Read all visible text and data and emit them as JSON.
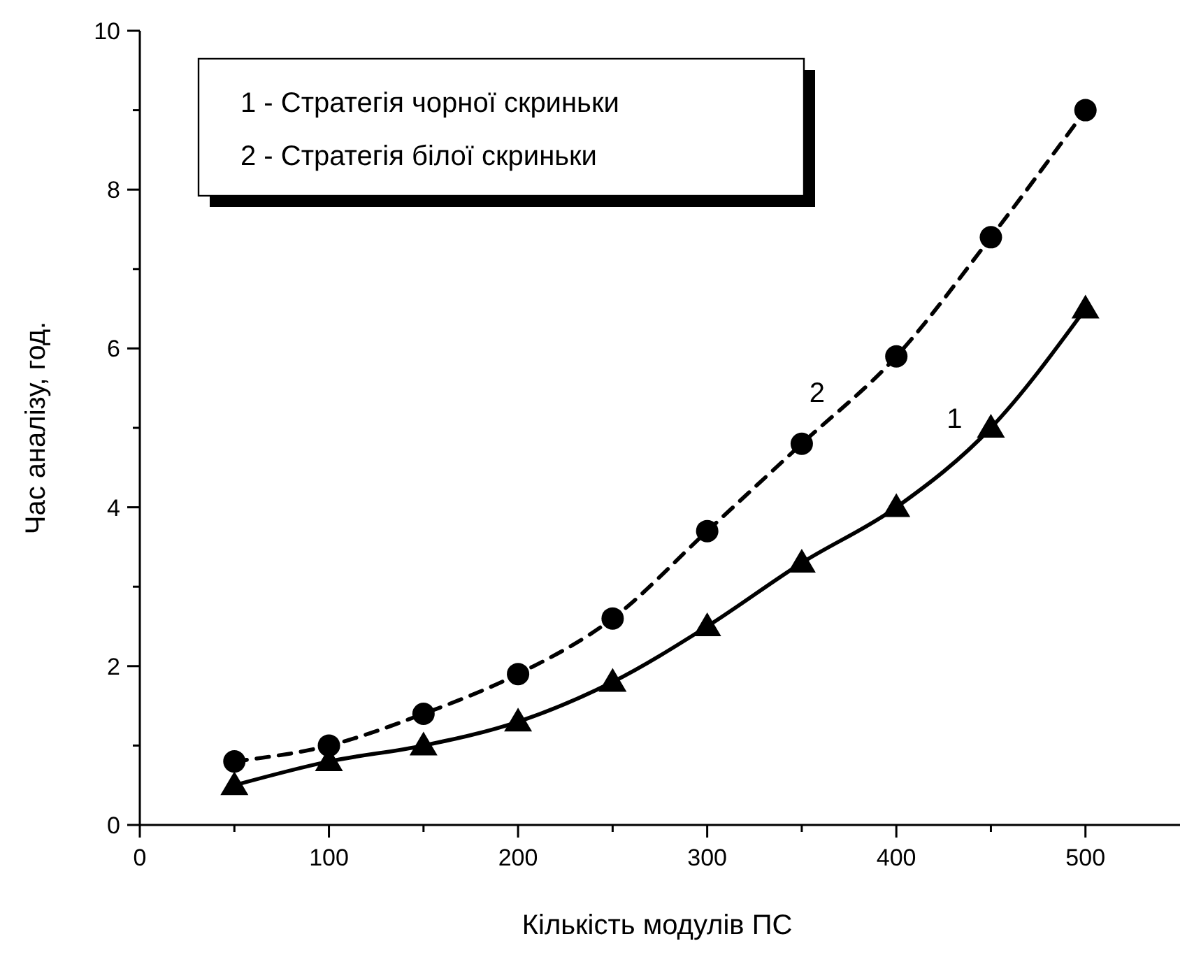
{
  "chart_data": {
    "type": "line",
    "xlabel": "Кількість модулів ПС",
    "ylabel": "Час аналізу, год.",
    "x": [
      50,
      100,
      150,
      200,
      250,
      300,
      350,
      400,
      450,
      500
    ],
    "series": [
      {
        "name": "1",
        "color": "#000000",
        "marker": "triangle",
        "line_style": "solid",
        "values": [
          0.5,
          0.8,
          1.0,
          1.3,
          1.8,
          2.5,
          3.3,
          4.0,
          5.0,
          6.5
        ]
      },
      {
        "name": "2",
        "color": "#000000",
        "marker": "circle",
        "line_style": "dashed",
        "values": [
          0.8,
          1.0,
          1.4,
          1.9,
          2.6,
          3.7,
          4.8,
          5.9,
          7.4,
          9.0
        ]
      }
    ],
    "annotations": [
      "1 - Стратегія чорної скриньки",
      "2 - Стратегія білої скриньки"
    ],
    "xlim": [
      0,
      550
    ],
    "xticks": [
      0,
      {
        "value": 50,
        "label": null
      },
      100,
      {
        "value": 150,
        "label": null
      },
      200,
      {
        "value": 250,
        "label": null
      },
      300,
      {
        "value": 350,
        "label": null
      },
      400,
      {
        "value": 450,
        "label": null
      },
      500
    ],
    "ylim": [
      0,
      10
    ],
    "yticks": [
      0,
      {
        "value": 1,
        "label": null
      },
      2,
      {
        "value": 3,
        "label": null
      },
      4,
      {
        "value": 5,
        "label": null
      },
      6,
      {
        "value": 7,
        "label": null
      },
      8,
      {
        "value": 9,
        "label": null
      },
      10
    ],
    "grid": false
  }
}
